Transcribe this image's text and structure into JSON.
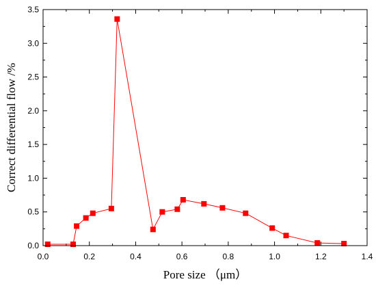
{
  "chart_data": {
    "type": "line",
    "xlabel": "Pore size （μm）",
    "ylabel": "Correct differential flow /%",
    "xlim": [
      0.0,
      1.4
    ],
    "ylim": [
      0.0,
      3.5
    ],
    "xticks": [
      0.0,
      0.2,
      0.4,
      0.6,
      0.8,
      1.0,
      1.2,
      1.4
    ],
    "yticks": [
      0.0,
      0.5,
      1.0,
      1.5,
      2.0,
      2.5,
      3.0,
      3.5
    ],
    "xtick_labels": [
      "0.0",
      "0.2",
      "0.4",
      "0.6",
      "0.8",
      "1.0",
      "1.2",
      "1.4"
    ],
    "ytick_labels": [
      "0.0",
      "0.5",
      "1.0",
      "1.5",
      "2.0",
      "2.5",
      "3.0",
      "3.5"
    ],
    "grid": false,
    "series": [
      {
        "color": "#ff0000",
        "marker": "square",
        "x": [
          0.02,
          0.13,
          0.145,
          0.185,
          0.215,
          0.295,
          0.32,
          0.475,
          0.515,
          0.58,
          0.605,
          0.695,
          0.775,
          0.875,
          0.99,
          1.05,
          1.185,
          1.3
        ],
        "y": [
          0.02,
          0.02,
          0.29,
          0.41,
          0.48,
          0.55,
          3.36,
          0.24,
          0.5,
          0.54,
          0.68,
          0.62,
          0.56,
          0.48,
          0.26,
          0.15,
          0.04,
          0.03
        ]
      }
    ]
  }
}
